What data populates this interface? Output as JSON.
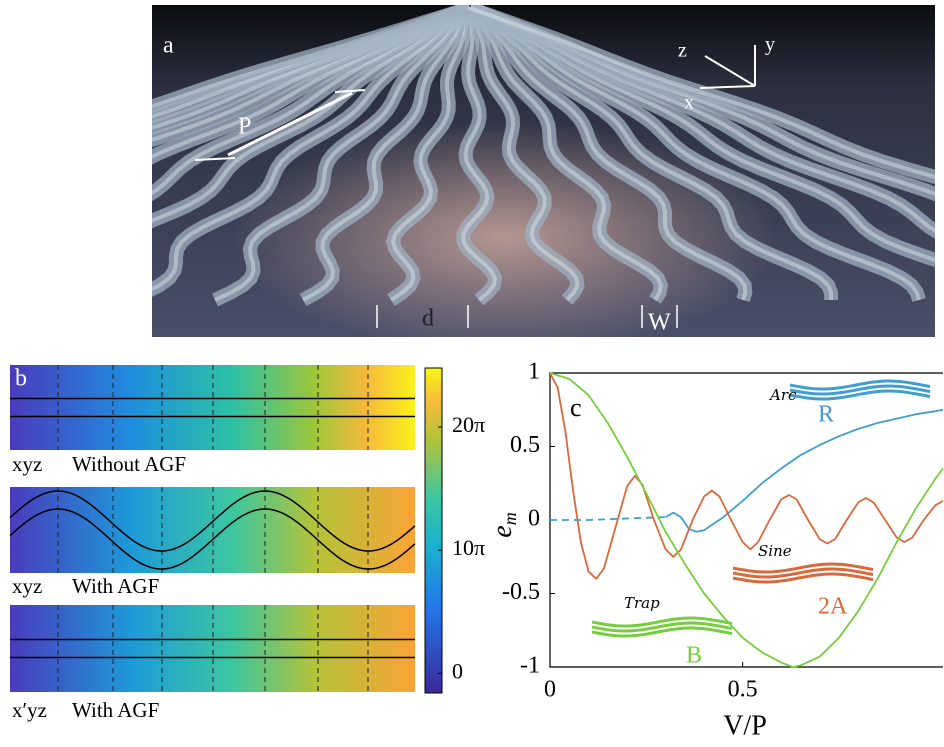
{
  "panel_a": {
    "label": "a",
    "period": "P",
    "axes": [
      "z",
      "y",
      "x"
    ],
    "spacing": "d",
    "width": "W"
  },
  "panel_b": {
    "label": "b",
    "rows": [
      {
        "plane": "xyz",
        "caption": "Without AGF"
      },
      {
        "plane": "xyz",
        "caption": "With AGF"
      },
      {
        "plane": "x′yz",
        "caption": "With AGF"
      }
    ],
    "colorbar": {
      "clim": [
        -1.6,
        24.8
      ],
      "ticks": [
        {
          "value": 20,
          "label": "20π"
        },
        {
          "value": 10,
          "label": "10π"
        },
        0
      ]
    }
  },
  "chart_data": {
    "type": "line",
    "label": "c",
    "xlabel": "V/P",
    "ylabel": "e",
    "ylabel_subscript": "m",
    "xlim": [
      0,
      1.02
    ],
    "ylim": [
      -1,
      1
    ],
    "xticks": [
      0,
      0.5
    ],
    "yticks": [
      1,
      0.5,
      0,
      -0.5,
      -1
    ],
    "series": [
      {
        "name": "Arc",
        "inset_label": "R",
        "color": "#3f9fd2",
        "linestyle": "solid",
        "x": [
          0.3,
          0.32,
          0.34,
          0.36,
          0.38,
          0.4,
          0.45,
          0.5,
          0.55,
          0.6,
          0.65,
          0.7,
          0.75,
          0.8,
          0.85,
          0.9,
          0.95,
          1.0,
          1.02
        ],
        "values": [
          0.02,
          0.05,
          0.02,
          -0.06,
          -0.08,
          -0.07,
          0.02,
          0.13,
          0.25,
          0.35,
          0.44,
          0.51,
          0.57,
          0.62,
          0.66,
          0.69,
          0.72,
          0.74,
          0.75
        ]
      },
      {
        "color": "#3f9fd2",
        "linestyle": "dashed",
        "x": [
          0,
          0.1,
          0.2,
          0.3
        ],
        "values": [
          0,
          0,
          0.01,
          0.02
        ]
      },
      {
        "name": "Sine",
        "inset_label": "2A",
        "color": "#d9683a",
        "linestyle": "solid",
        "x": [
          0,
          0.02,
          0.04,
          0.06,
          0.08,
          0.1,
          0.12,
          0.14,
          0.17,
          0.2,
          0.22,
          0.24,
          0.27,
          0.3,
          0.32,
          0.34,
          0.37,
          0.4,
          0.42,
          0.44,
          0.47,
          0.5,
          0.52,
          0.54,
          0.57,
          0.6,
          0.62,
          0.64,
          0.67,
          0.7,
          0.72,
          0.74,
          0.77,
          0.8,
          0.82,
          0.84,
          0.87,
          0.9,
          0.92,
          0.94,
          0.97,
          1.0,
          1.02
        ],
        "values": [
          1,
          0.9,
          0.6,
          0.2,
          -0.15,
          -0.35,
          -0.4,
          -0.33,
          -0.05,
          0.23,
          0.3,
          0.24,
          0,
          -0.2,
          -0.25,
          -0.2,
          0,
          0.16,
          0.2,
          0.16,
          0,
          -0.15,
          -0.2,
          -0.15,
          0,
          0.14,
          0.17,
          0.14,
          0,
          -0.13,
          -0.16,
          -0.13,
          0,
          0.12,
          0.15,
          0.12,
          0,
          -0.12,
          -0.15,
          -0.12,
          0,
          0.1,
          0.13
        ]
      },
      {
        "name": "Trap",
        "inset_label": "B",
        "color": "#74cf3c",
        "linestyle": "solid",
        "x": [
          0,
          0.05,
          0.1,
          0.15,
          0.2,
          0.25,
          0.3,
          0.35,
          0.4,
          0.45,
          0.5,
          0.55,
          0.6,
          0.63,
          0.65,
          0.7,
          0.75,
          0.8,
          0.85,
          0.9,
          0.95,
          1.0,
          1.02
        ],
        "values": [
          1,
          0.96,
          0.85,
          0.66,
          0.43,
          0.18,
          -0.08,
          -0.3,
          -0.5,
          -0.66,
          -0.8,
          -0.9,
          -0.97,
          -1,
          -0.99,
          -0.93,
          -0.8,
          -0.62,
          -0.4,
          -0.15,
          0.08,
          0.28,
          0.35
        ]
      }
    ]
  }
}
